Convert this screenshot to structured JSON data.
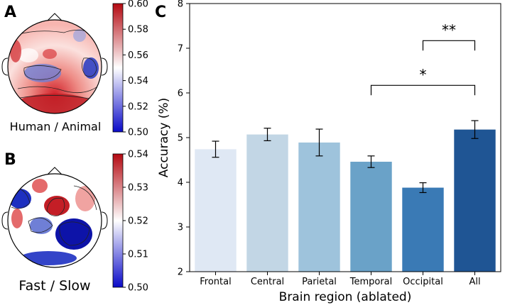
{
  "panels": {
    "a": {
      "letter": "A",
      "caption": "Human / Animal",
      "colorbar_ticks": [
        "0.60",
        "0.58",
        "0.56",
        "0.54",
        "0.52",
        "0.50"
      ],
      "colorbar_range": [
        0.5,
        0.6
      ]
    },
    "b": {
      "letter": "B",
      "caption": "Fast / Slow",
      "colorbar_ticks": [
        "0.54",
        "0.53",
        "0.52",
        "0.51",
        "0.50"
      ],
      "colorbar_range": [
        0.5,
        0.54
      ]
    },
    "c": {
      "letter": "C"
    }
  },
  "colors": {
    "diverging_low": "#0a0ac8",
    "diverging_mid": "#ffffff",
    "diverging_high": "#b40a12",
    "bars": [
      "#dfe8f4",
      "#c2d6e5",
      "#9ec3dc",
      "#6aa2c8",
      "#3a7ab5",
      "#1f5594"
    ]
  },
  "chart_data": {
    "type": "bar",
    "categories": [
      "Frontal",
      "Central",
      "Parietal",
      "Temporal",
      "Occipital",
      "All"
    ],
    "values": [
      4.74,
      5.07,
      4.89,
      4.46,
      3.88,
      5.18
    ],
    "errors": [
      0.18,
      0.14,
      0.3,
      0.13,
      0.11,
      0.2
    ],
    "xlabel": "Brain region (ablated)",
    "ylabel": "Accuracy (%)",
    "ylim": [
      2,
      8
    ],
    "yticks": [
      2,
      3,
      4,
      5,
      6,
      7,
      8
    ],
    "grid": false,
    "significance": [
      {
        "from": "Temporal",
        "to": "All",
        "label": "*"
      },
      {
        "from": "Occipital",
        "to": "All",
        "label": "**"
      }
    ]
  }
}
